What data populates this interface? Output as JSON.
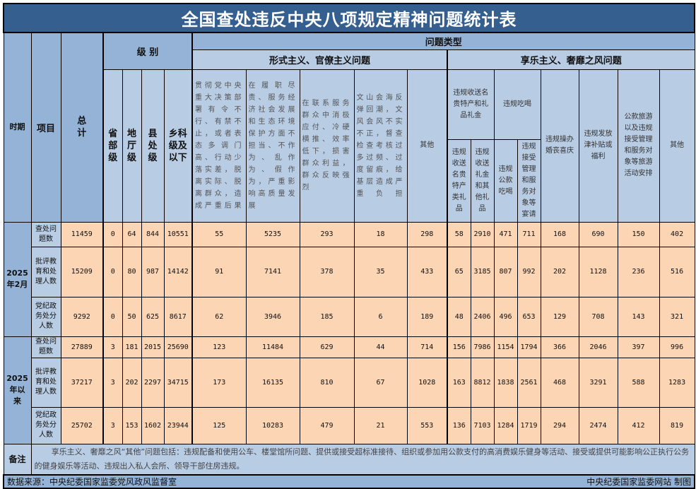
{
  "title": "全国查处违反中央八项规定精神问题统计表",
  "header": {
    "period": "时期",
    "item": "项目",
    "total": "总计",
    "level_group": "级 别",
    "levels": [
      "省部级",
      "地厅级",
      "县处级",
      "乡科级及以下"
    ],
    "problem_type": "问题类型",
    "formalism_group": "形式主义、官僚主义问题",
    "hedonism_group": "享乐主义、奢靡之风问题",
    "formalism_cols": [
      "贯彻党中央重大决策部署有令不行、有禁不止，或者表态多调门高、行动少落实差，脱离实际、脱离群众，造成严重后果",
      "在履职尽责、服务经济社会发展和生态环境保护方面不担当、不作为、乱作为、假作为，严重影响高质量发展",
      "在联系服务群众中消极应付、冷硬横推、效率低下，损害群众利益，群众反映强烈",
      "文山会海反弹回潮，文风会风不实不正，督查检查考核过多过频、过度留痕，给基层造成严重负担",
      "其他"
    ],
    "gifts_group": "违规收送名贵特产和礼品礼金",
    "dining_group": "违规吃喝",
    "gifts_cols": [
      "违规收送名贵特产类礼品",
      "违规收送礼金和其他礼品"
    ],
    "dining_cols": [
      "违规公款吃喝",
      "违规接受管理和服务对象等宴请"
    ],
    "hedonism_cols": [
      "违规操办婚丧喜庆",
      "违规发放津补贴或福利",
      "公款旅游以及违规接受管理和服务对象等旅游活动安排",
      "其他"
    ]
  },
  "periods": [
    {
      "label": "2025年2月",
      "rows": [
        {
          "item": "查处问题数",
          "values": [
            "11459",
            "0",
            "64",
            "844",
            "10551",
            "55",
            "5235",
            "293",
            "18",
            "298",
            "58",
            "2910",
            "471",
            "711",
            "168",
            "690",
            "150",
            "402"
          ]
        },
        {
          "item": "批评教育和处理人数",
          "values": [
            "15209",
            "0",
            "80",
            "987",
            "14142",
            "91",
            "7141",
            "378",
            "35",
            "433",
            "65",
            "3185",
            "807",
            "992",
            "202",
            "1128",
            "236",
            "516"
          ]
        },
        {
          "item": "党纪政务处分人数",
          "values": [
            "9292",
            "0",
            "50",
            "625",
            "8617",
            "62",
            "3946",
            "185",
            "6",
            "189",
            "48",
            "2406",
            "496",
            "653",
            "129",
            "708",
            "143",
            "321"
          ]
        }
      ]
    },
    {
      "label": "2025年以来",
      "rows": [
        {
          "item": "查处问题数",
          "values": [
            "27889",
            "3",
            "181",
            "2015",
            "25690",
            "123",
            "11484",
            "629",
            "44",
            "714",
            "156",
            "7986",
            "1154",
            "1794",
            "366",
            "2046",
            "397",
            "996"
          ]
        },
        {
          "item": "批评教育和处理人数",
          "values": [
            "37217",
            "3",
            "202",
            "2297",
            "34715",
            "173",
            "16135",
            "810",
            "67",
            "1028",
            "163",
            "8812",
            "1838",
            "2561",
            "468",
            "3291",
            "588",
            "1283"
          ]
        },
        {
          "item": "党纪政务处分人数",
          "values": [
            "25702",
            "3",
            "153",
            "1602",
            "23944",
            "125",
            "10283",
            "479",
            "21",
            "553",
            "136",
            "7103",
            "1284",
            "1719",
            "294",
            "2474",
            "412",
            "819"
          ]
        }
      ]
    }
  ],
  "note": {
    "label": "备注",
    "text": "享乐主义、奢靡之风“其他”问题包括：违规配备和使用公车、楼堂馆所问题、提供或接受超标准接待、组织或参加用公款支付的高消费娱乐健身等活动、接受或提供可能影响公正执行公务的健身娱乐等活动、违规出入私人会所、领导干部住房违规。"
  },
  "footer": {
    "source": "数据来源：中央纪委国家监委党风政风监督室",
    "credit": "中央纪委国家监委网站 制图"
  },
  "colors": {
    "title_bg": "#345f8f",
    "header_bg": "#b8cce4",
    "header_dark": "#95b3d7",
    "data_bg": "#fcd5b4"
  }
}
